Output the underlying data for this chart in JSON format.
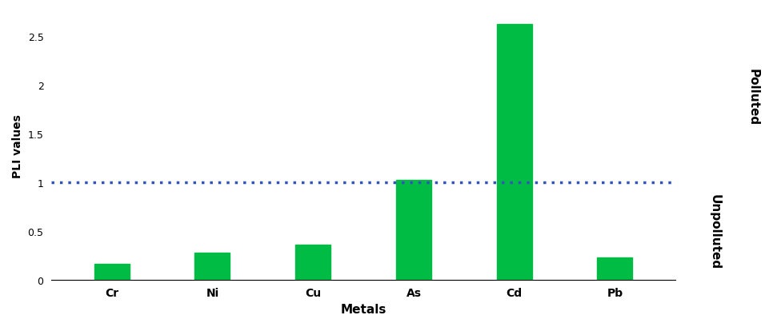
{
  "categories": [
    "Cr",
    "Ni",
    "Cu",
    "As",
    "Cd",
    "Pb"
  ],
  "values": [
    0.16,
    0.28,
    0.36,
    1.02,
    2.62,
    0.23
  ],
  "bar_color": "#00bb44",
  "xlabel": "Metals",
  "ylabel": "PLI values",
  "yticks": [
    0,
    0.5,
    1,
    1.5,
    2,
    2.5
  ],
  "ylim": [
    0,
    2.75
  ],
  "hline_y": 1.0,
  "hline_color": "#3355bb",
  "right_label_upper": "Polluted",
  "right_label_lower": "Unpolluted",
  "background_color": "#ffffff",
  "bar_width": 0.35
}
